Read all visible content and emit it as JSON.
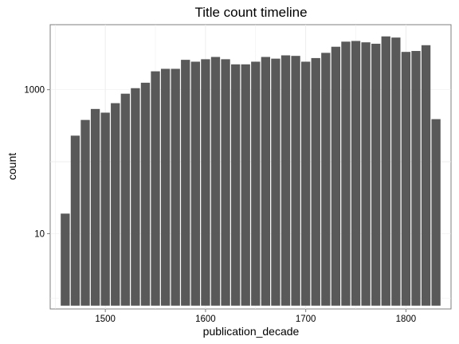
{
  "chart_data": {
    "type": "bar",
    "title": "Title count timeline",
    "xlabel": "publication_decade",
    "ylabel": "count",
    "y_scale": "log10",
    "grid": true,
    "xlim": [
      1445,
      1845
    ],
    "ylim": [
      0.9,
      8000
    ],
    "x_ticks": [
      1500,
      1600,
      1700,
      1800
    ],
    "y_ticks": [
      10,
      1000
    ],
    "bar_color": "#595959",
    "decades": [
      1460,
      1470,
      1480,
      1490,
      1500,
      1510,
      1520,
      1530,
      1540,
      1550,
      1560,
      1570,
      1580,
      1590,
      1600,
      1610,
      1620,
      1630,
      1640,
      1650,
      1660,
      1670,
      1680,
      1690,
      1700,
      1710,
      1720,
      1730,
      1740,
      1750,
      1760,
      1770,
      1780,
      1790,
      1800,
      1810,
      1820,
      1830
    ],
    "values": [
      19,
      230,
      380,
      540,
      480,
      650,
      880,
      1050,
      1250,
      1800,
      1950,
      1950,
      2600,
      2450,
      2650,
      2850,
      2650,
      2250,
      2250,
      2450,
      2850,
      2700,
      3000,
      2950,
      2450,
      2750,
      3250,
      3950,
      4650,
      4750,
      4550,
      4350,
      5500,
      5300,
      3350,
      3450,
      4150,
      390
    ]
  }
}
